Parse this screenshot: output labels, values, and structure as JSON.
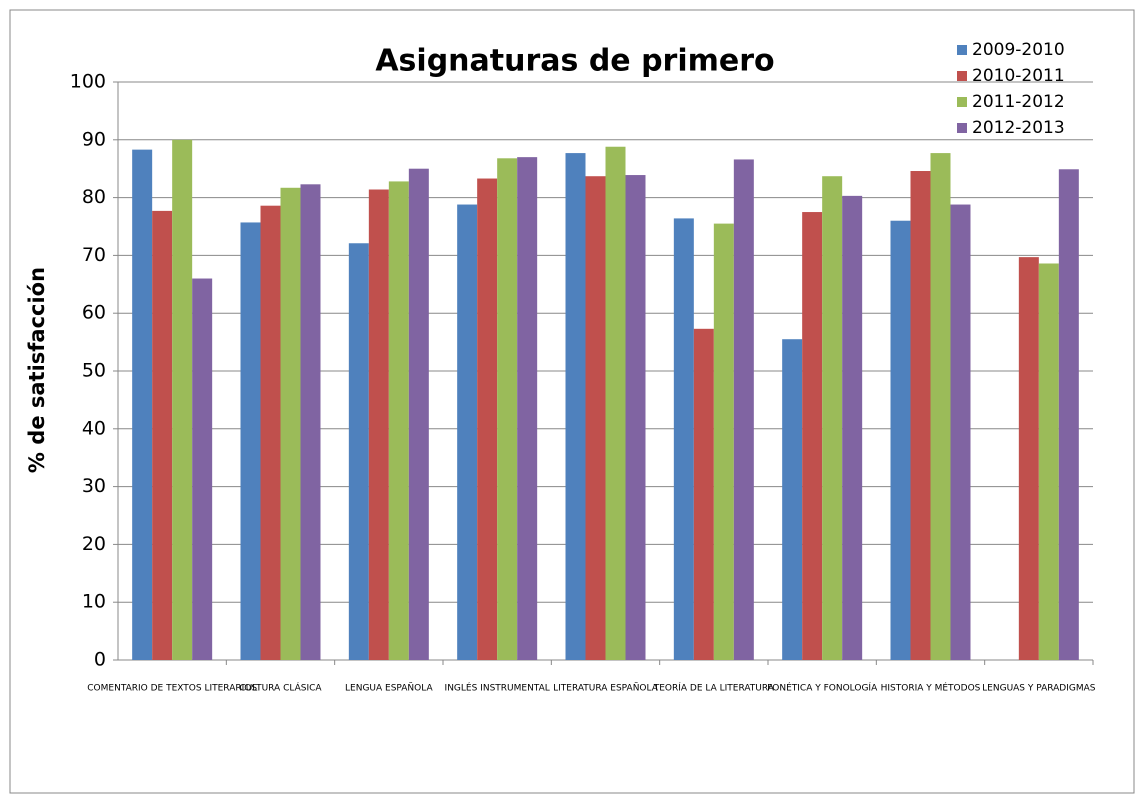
{
  "chart_data": {
    "type": "bar",
    "title": "Asignaturas de primero",
    "y_label": "% de satisfacción",
    "categories": [
      "COMENTARIO DE TEXTOS LITERARIOS",
      "CULTURA CLÁSICA",
      "LENGUA ESPAÑOLA",
      "INGLÉS INSTRUMENTAL",
      "LITERATURA ESPAÑOLA",
      "TEORÍA DE LA LITERATURA",
      "FONÉTICA Y FONOLOGÍA",
      "HISTORIA Y MÉTODOS",
      "LENGUAS Y PARADIGMAS"
    ],
    "series": [
      {
        "name": "2009-2010",
        "color": "#4f81bd",
        "values": [
          88.3,
          75.7,
          72.1,
          78.8,
          87.7,
          76.4,
          55.5,
          76.0,
          null
        ]
      },
      {
        "name": "2010-2011",
        "color": "#c0504d",
        "values": [
          77.7,
          78.6,
          81.4,
          83.3,
          83.7,
          57.3,
          77.5,
          84.6,
          69.7
        ]
      },
      {
        "name": "2011-2012",
        "color": "#9bbb59",
        "values": [
          90.0,
          81.7,
          82.8,
          86.8,
          88.8,
          75.5,
          83.7,
          87.7,
          68.6
        ]
      },
      {
        "name": "2012-2013",
        "color": "#8064a2",
        "values": [
          66.0,
          82.3,
          85.0,
          87.0,
          83.9,
          86.6,
          80.3,
          78.8,
          84.9
        ]
      }
    ],
    "ylim": [
      0,
      100
    ],
    "yticks": [
      0,
      10,
      20,
      30,
      40,
      50,
      60,
      70,
      80,
      90,
      100
    ],
    "grid": true,
    "legend": "top-right"
  }
}
